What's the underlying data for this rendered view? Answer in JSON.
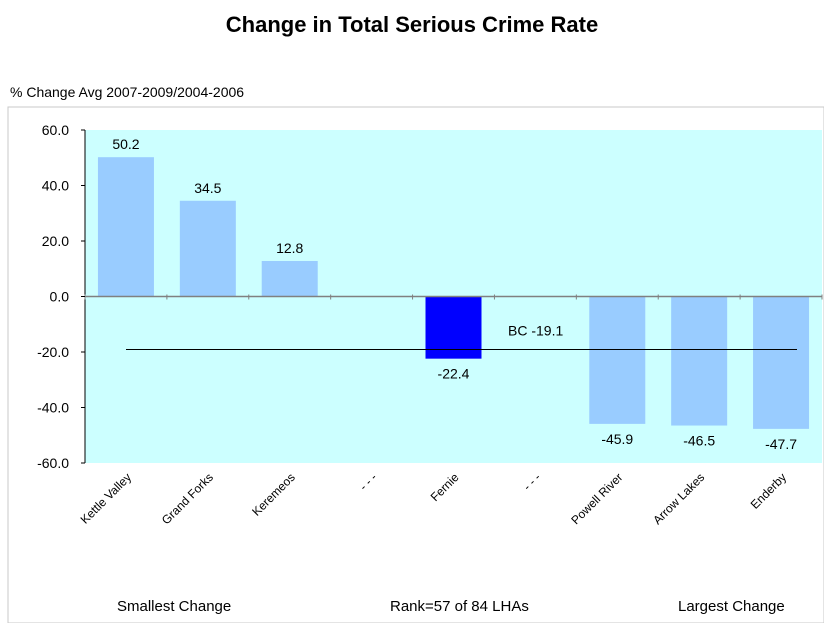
{
  "chart_data": {
    "type": "bar",
    "title": "Change in Total Serious Crime Rate",
    "ylabel": "% Change Avg 2007-2009/2004-2006",
    "categories": [
      "Kettle Valley",
      "Grand Forks",
      "Keremeos",
      "- - -",
      "Fernie",
      "- - -",
      "Powell River",
      "Arrow Lakes",
      "Enderby"
    ],
    "values": [
      50.2,
      34.5,
      12.8,
      null,
      -22.4,
      null,
      -45.9,
      -46.5,
      -47.7
    ],
    "data_labels": [
      "50.2",
      "34.5",
      "12.8",
      "",
      "-22.4",
      "",
      "-45.9",
      "-46.5",
      "-47.7"
    ],
    "highlight_index": 4,
    "ylim": [
      -60,
      60
    ],
    "yticks": [
      60,
      40,
      20,
      0,
      -20,
      -40,
      -60
    ],
    "ytick_labels": [
      "60.0",
      "40.0",
      "20.0",
      "0.0",
      "-20.0",
      "-40.0",
      "-60.0"
    ],
    "reference_line": {
      "label": "BC -19.1",
      "value": -19.1
    },
    "colors": {
      "bar": "#99CCFF",
      "highlight": "#0000FF",
      "plot_background": "#CCFFFF",
      "reference_line": "#000000"
    },
    "grid": false,
    "legend": "none"
  },
  "footer": {
    "left": "Smallest Change",
    "middle": "Rank=57 of 84 LHAs",
    "right": "Largest Change"
  }
}
